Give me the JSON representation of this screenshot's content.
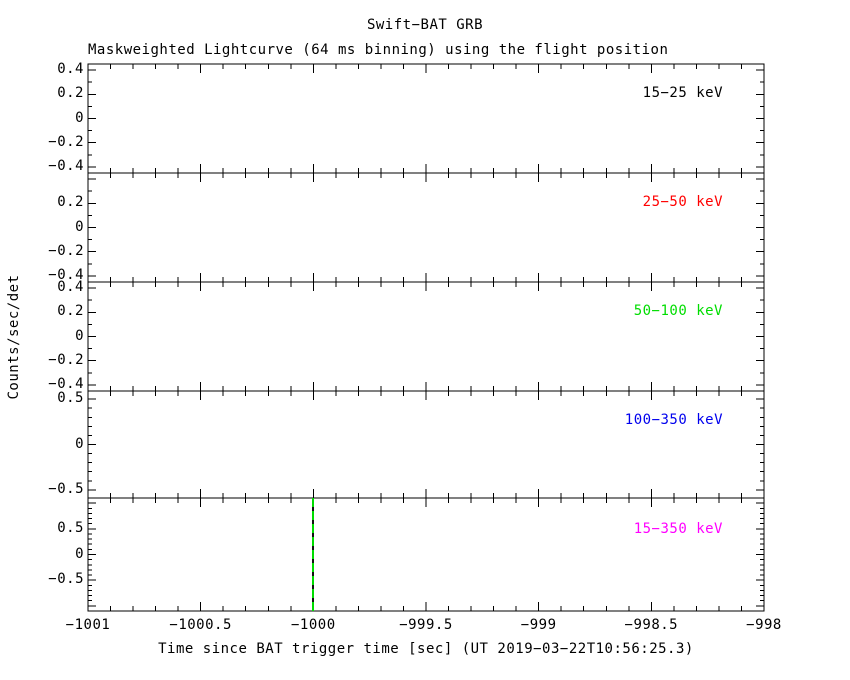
{
  "title": "Swift−BAT GRB",
  "subtitle": "Maskweighted Lightcurve (64 ms binning) using the flight position",
  "xlabel": "Time since BAT trigger time [sec] (UT 2019−03−22T10:56:25.3)",
  "ylabel": "Counts/sec/det",
  "colors": {
    "background": "#ffffff",
    "axis": "#000000",
    "trigger_line_green": "#00dd00",
    "trigger_line_dark": "#111111"
  },
  "chart_data": {
    "type": "line",
    "title": "Swift−BAT GRB — Maskweighted Lightcurve (64 ms binning) using the flight position",
    "xlabel": "Time since BAT trigger time [sec] (UT 2019−03−22T10:56:25.3)",
    "ylabel": "Counts/sec/det",
    "grid": false,
    "legend_position": "inside-top-right-per-panel",
    "x_range": [
      -1001,
      -998
    ],
    "x_major_tick": 0.5,
    "x_minor_tick": 0.1,
    "x_tick_labels": [
      {
        "text": "−1001",
        "value": -1001
      },
      {
        "text": "−1000.5",
        "value": -1000.5
      },
      {
        "text": "−1000",
        "value": -1000
      },
      {
        "text": "−999.5",
        "value": -999.5
      },
      {
        "text": "−999",
        "value": -999
      },
      {
        "text": "−998.5",
        "value": -998.5
      },
      {
        "text": "−998",
        "value": -998
      }
    ],
    "panels": [
      {
        "label": "15−25 keV",
        "color": "#000000",
        "y_range": [
          -0.45,
          0.45
        ],
        "y_major_tick": 0.2,
        "y_minor_tick": 0.1,
        "y_tick_labels": [
          {
            "text": "0.4",
            "value": 0.4
          },
          {
            "text": "0.2",
            "value": 0.2
          },
          {
            "text": "0",
            "value": 0
          },
          {
            "text": "−0.2",
            "value": -0.2
          },
          {
            "text": "−0.4",
            "value": -0.4
          }
        ],
        "series": {
          "x": [],
          "y": [],
          "note_visible_data": "none"
        }
      },
      {
        "label": "25−50 keV",
        "color": "#ff0000",
        "y_range": [
          -0.45,
          0.45
        ],
        "y_major_tick": 0.2,
        "y_minor_tick": 0.1,
        "y_tick_labels": [
          {
            "text": "0.2",
            "value": 0.2
          },
          {
            "text": "0",
            "value": 0
          },
          {
            "text": "−0.2",
            "value": -0.2
          },
          {
            "text": "−0.4",
            "value": -0.4
          }
        ],
        "series": {
          "x": [],
          "y": [],
          "note_visible_data": "none"
        }
      },
      {
        "label": "50−100 keV",
        "color": "#00dd00",
        "y_range": [
          -0.45,
          0.45
        ],
        "y_major_tick": 0.2,
        "y_minor_tick": 0.1,
        "y_tick_labels": [
          {
            "text": "0.4",
            "value": 0.4
          },
          {
            "text": "0.2",
            "value": 0.2
          },
          {
            "text": "0",
            "value": 0
          },
          {
            "text": "−0.2",
            "value": -0.2
          },
          {
            "text": "−0.4",
            "value": -0.4
          }
        ],
        "series": {
          "x": [],
          "y": [],
          "note_visible_data": "none"
        }
      },
      {
        "label": "100−350 keV",
        "color": "#0000ee",
        "y_range": [
          -0.59,
          0.59
        ],
        "y_major_tick": 0.5,
        "y_minor_tick": 0.1,
        "y_tick_labels": [
          {
            "text": "0.5",
            "value": 0.5
          },
          {
            "text": "0",
            "value": 0
          },
          {
            "text": "−0.5",
            "value": -0.5
          }
        ],
        "series": {
          "x": [],
          "y": [],
          "note_visible_data": "none"
        }
      },
      {
        "label": "15−350 keV",
        "color": "#ff00ff",
        "y_range": [
          -1.1,
          1.1
        ],
        "y_major_tick": 0.5,
        "y_minor_tick": 0.1,
        "y_tick_labels": [
          {
            "text": "0.5",
            "value": 0.5
          },
          {
            "text": "0",
            "value": 0
          },
          {
            "text": "−0.5",
            "value": -0.5
          }
        ],
        "series": {
          "x": [],
          "y": [],
          "note_visible_data": "none"
        }
      }
    ],
    "trigger_marker": {
      "x": -1000,
      "panel_index": 4,
      "style": "dash-dot",
      "color": "#00dd00"
    }
  }
}
